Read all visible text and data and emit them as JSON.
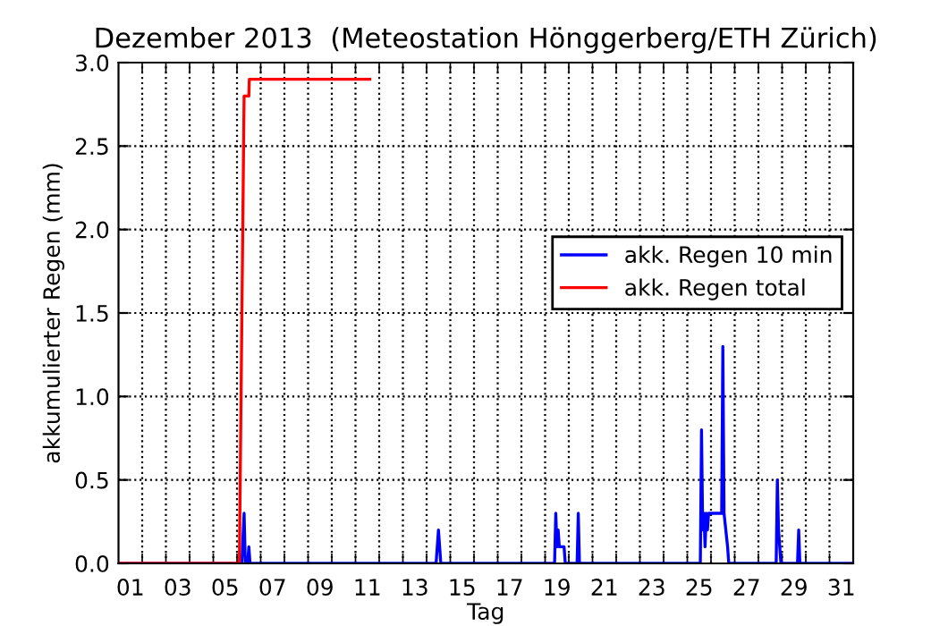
{
  "chart_data": {
    "type": "line",
    "title": "Dezember 2013  (Meteostation Hönggerberg/ETH Zürich)",
    "xlabel": "Tag",
    "ylabel": "akkumulierter Regen (mm)",
    "xlim": [
      1,
      32
    ],
    "ylim": [
      0,
      3.0
    ],
    "xticks": [
      {
        "value": 1.5,
        "label": "01"
      },
      {
        "value": 3.5,
        "label": "03"
      },
      {
        "value": 5.5,
        "label": "05"
      },
      {
        "value": 7.5,
        "label": "07"
      },
      {
        "value": 9.5,
        "label": "09"
      },
      {
        "value": 11.5,
        "label": "11"
      },
      {
        "value": 13.5,
        "label": "13"
      },
      {
        "value": 15.5,
        "label": "15"
      },
      {
        "value": 17.5,
        "label": "17"
      },
      {
        "value": 19.5,
        "label": "19"
      },
      {
        "value": 21.5,
        "label": "21"
      },
      {
        "value": 23.5,
        "label": "23"
      },
      {
        "value": 25.5,
        "label": "25"
      },
      {
        "value": 27.5,
        "label": "27"
      },
      {
        "value": 29.5,
        "label": "29"
      },
      {
        "value": 31.5,
        "label": "31"
      },
      {
        "value": 2,
        "label": null
      },
      {
        "value": 3,
        "label": null
      },
      {
        "value": 4,
        "label": null
      },
      {
        "value": 5,
        "label": null
      },
      {
        "value": 6,
        "label": null
      },
      {
        "value": 7,
        "label": null
      },
      {
        "value": 8,
        "label": null
      },
      {
        "value": 9,
        "label": null
      },
      {
        "value": 10,
        "label": null
      },
      {
        "value": 11,
        "label": null
      },
      {
        "value": 12,
        "label": null
      },
      {
        "value": 13,
        "label": null
      },
      {
        "value": 14,
        "label": null
      },
      {
        "value": 15,
        "label": null
      },
      {
        "value": 16,
        "label": null
      },
      {
        "value": 17,
        "label": null
      },
      {
        "value": 18,
        "label": null
      },
      {
        "value": 19,
        "label": null
      },
      {
        "value": 20,
        "label": null
      },
      {
        "value": 21,
        "label": null
      },
      {
        "value": 22,
        "label": null
      },
      {
        "value": 23,
        "label": null
      },
      {
        "value": 24,
        "label": null
      },
      {
        "value": 25,
        "label": null
      },
      {
        "value": 26,
        "label": null
      },
      {
        "value": 27,
        "label": null
      },
      {
        "value": 28,
        "label": null
      },
      {
        "value": 29,
        "label": null
      },
      {
        "value": 30,
        "label": null
      },
      {
        "value": 31,
        "label": null
      }
    ],
    "yticks": [
      {
        "value": 0,
        "label": "0.0"
      },
      {
        "value": 0.5,
        "label": "0.5"
      },
      {
        "value": 1.0,
        "label": "1.0"
      },
      {
        "value": 1.5,
        "label": "1.5"
      },
      {
        "value": 2.0,
        "label": "2.0"
      },
      {
        "value": 2.5,
        "label": "2.5"
      },
      {
        "value": 3.0,
        "label": "3.0"
      }
    ],
    "grid": true,
    "legend": "right",
    "series": [
      {
        "name": "akk. Regen 10 min",
        "color": "#0000ff",
        "x": [
          1,
          6.2,
          6.3,
          6.35,
          6.45,
          6.5,
          6.55,
          14.4,
          14.5,
          14.6,
          18.3,
          19.4,
          19.45,
          19.5,
          19.55,
          19.6,
          19.8,
          19.85,
          20.35,
          20.4,
          20.45,
          25.55,
          25.6,
          25.65,
          25.7,
          25.75,
          25.8,
          25.85,
          25.9,
          25.95,
          26.2,
          26.25,
          26.45,
          26.5,
          26.55,
          26.7,
          26.75,
          28.75,
          28.8,
          28.85,
          28.9,
          28.95,
          29.65,
          29.7,
          29.75,
          32
        ],
        "values": [
          0,
          0,
          0.3,
          0,
          0,
          0.1,
          0,
          0,
          0.2,
          0,
          0,
          0,
          0.3,
          0.1,
          0.2,
          0.1,
          0.1,
          0,
          0,
          0.3,
          0,
          0,
          0.8,
          0.2,
          0.3,
          0.1,
          0.3,
          0.2,
          0.3,
          0.3,
          0.3,
          0.3,
          0.3,
          1.3,
          0.3,
          0.1,
          0,
          0,
          0.5,
          0.2,
          0.1,
          0,
          0,
          0.2,
          0,
          0
        ]
      },
      {
        "name": "akk. Regen total",
        "color": "#ff0000",
        "x": [
          1,
          6.1,
          6.3,
          6.5,
          6.52,
          11.6
        ],
        "values": [
          0,
          0,
          2.8,
          2.8,
          2.9,
          2.9
        ]
      }
    ]
  }
}
